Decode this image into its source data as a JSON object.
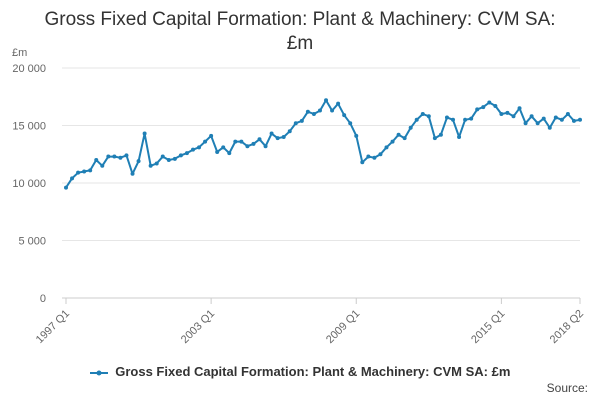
{
  "chart_data": {
    "type": "line",
    "title_line1": "Gross Fixed Capital Formation: Plant & Machinery: CVM SA:",
    "title_line2": "£m",
    "ylabel": "£m",
    "ylim": [
      0,
      20000
    ],
    "yticks": [
      0,
      5000,
      10000,
      15000,
      20000
    ],
    "ytick_labels": [
      "0",
      "5 000",
      "10 000",
      "15 000",
      "20 000"
    ],
    "xtick_labels": [
      {
        "label": "1997 Q1",
        "index": 0
      },
      {
        "label": "2003 Q1",
        "index": 24
      },
      {
        "label": "2009 Q1",
        "index": 48
      },
      {
        "label": "2015 Q1",
        "index": 72
      },
      {
        "label": "2018 Q2",
        "index": 85
      }
    ],
    "series": [
      {
        "name": "Gross Fixed Capital Formation: Plant & Machinery: CVM SA: £m",
        "color": "#1f7fb5",
        "values": [
          9600,
          10400,
          10900,
          11000,
          11100,
          12000,
          11500,
          12300,
          12300,
          12200,
          12400,
          10800,
          11900,
          14300,
          11500,
          11700,
          12300,
          12000,
          12100,
          12400,
          12600,
          12900,
          13100,
          13600,
          14100,
          12700,
          13100,
          12600,
          13600,
          13600,
          13200,
          13400,
          13800,
          13200,
          14300,
          13900,
          14000,
          14500,
          15200,
          15400,
          16200,
          16000,
          16300,
          17200,
          16300,
          16900,
          15900,
          15200,
          14100,
          11800,
          12300,
          12200,
          12500,
          13100,
          13600,
          14200,
          13900,
          14800,
          15500,
          16000,
          15800,
          13900,
          14200,
          15700,
          15500,
          14000,
          15500,
          15600,
          16400,
          16600,
          17000,
          16700,
          16000,
          16100,
          15800,
          16500,
          15200,
          15800,
          15200,
          15600,
          14800,
          15700,
          15500,
          16000,
          15400,
          15500
        ]
      }
    ]
  },
  "footer": {
    "source_label": "Source:"
  }
}
